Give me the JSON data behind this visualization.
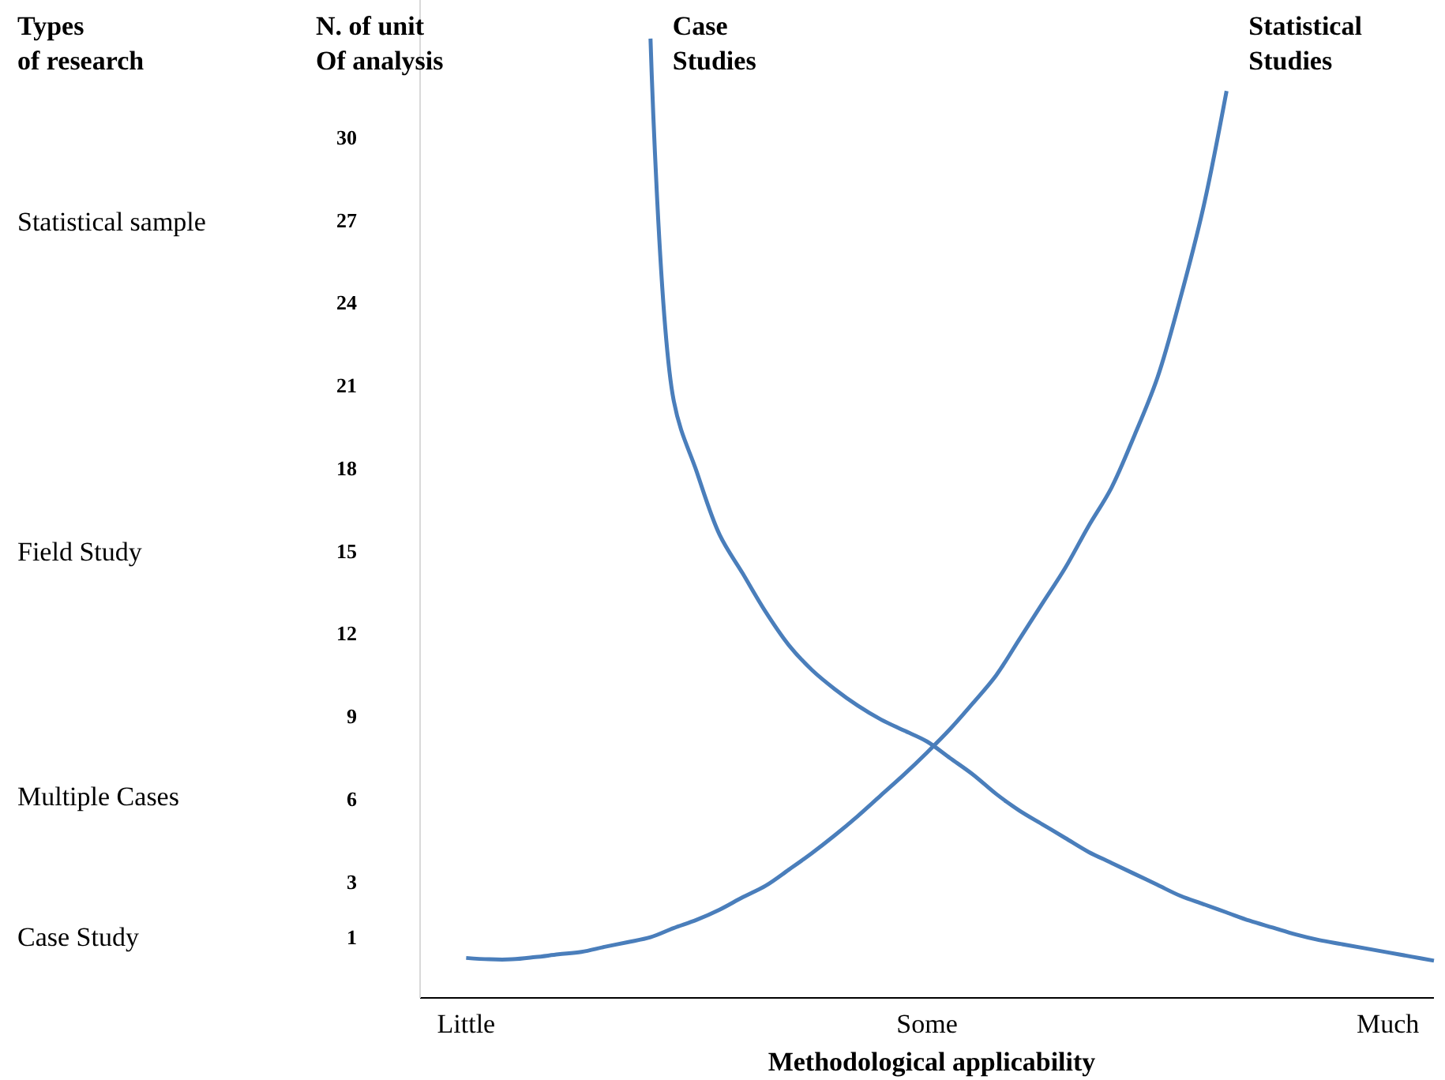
{
  "chart_data": {
    "type": "line",
    "xlabel": "Methodological applicability",
    "ylabel": "N. of unit\nOf analysis",
    "categories": [
      null,
      null,
      "Little",
      null,
      null,
      null,
      null,
      null,
      null,
      null,
      null,
      null,
      null,
      null,
      null,
      null,
      null,
      null,
      null,
      null,
      null,
      null,
      "Some",
      null,
      null,
      null,
      null,
      null,
      null,
      null,
      null,
      null,
      null,
      null,
      null,
      null,
      null,
      null,
      null,
      null,
      null,
      null,
      "Much",
      null,
      null
    ],
    "ylim": [
      -1.2,
      35
    ],
    "yticks": [
      1,
      3,
      6,
      9,
      12,
      15,
      18,
      21,
      24,
      27,
      30
    ],
    "annotations": [
      "Types\nof research",
      "Statistical sample",
      "Field Study",
      "Multiple Cases",
      "Case Study"
    ],
    "grid": false,
    "marker": "none",
    "line_style": "solid",
    "series": [
      {
        "name": "Case\nStudies",
        "color": "#4a7ebb",
        "values": [
          null,
          null,
          null,
          null,
          null,
          null,
          null,
          null,
          null,
          null,
          33.6,
          20.5,
          17.9,
          15.6,
          14.2,
          12.8,
          11.6,
          10.7,
          10.0,
          9.4,
          8.9,
          8.5,
          8.1,
          7.5,
          6.9,
          6.2,
          5.6,
          5.1,
          4.6,
          4.1,
          3.7,
          3.3,
          2.9,
          2.5,
          2.2,
          1.9,
          1.6,
          1.35,
          1.1,
          0.9,
          0.75,
          0.6,
          0.45,
          0.3,
          0.15
        ]
      },
      {
        "name": "Statistical\nStudies",
        "color": "#4a7ebb",
        "values": [
          null,
          null,
          0.25,
          0.2,
          0.2,
          0.28,
          0.38,
          0.47,
          0.65,
          0.82,
          1.0,
          1.33,
          1.63,
          2.0,
          2.45,
          2.87,
          3.45,
          4.05,
          4.7,
          5.4,
          6.15,
          6.9,
          7.7,
          8.55,
          9.5,
          10.5,
          11.8,
          13.1,
          14.4,
          15.9,
          17.3,
          19.2,
          21.3,
          24.2,
          27.5,
          31.7,
          null,
          null,
          null,
          null,
          null,
          null,
          null,
          null,
          null
        ]
      }
    ]
  }
}
